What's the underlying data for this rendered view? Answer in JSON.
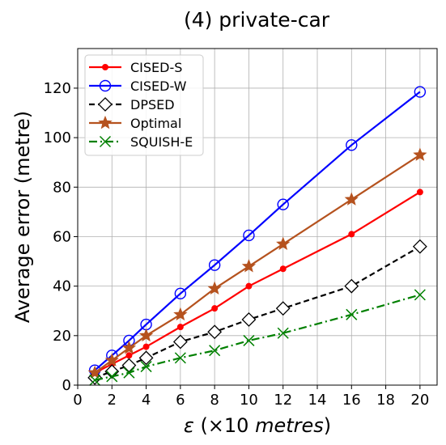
{
  "chart_data": {
    "type": "line",
    "title": "(4) private-car",
    "xlabel": {
      "symbol": "ε",
      "rest": " (×10 ",
      "unit": "metres",
      "close": ")"
    },
    "ylabel": "Average error (metre)",
    "xlim": [
      0,
      21
    ],
    "ylim": [
      0,
      136
    ],
    "xticks": [
      0,
      2,
      4,
      6,
      8,
      10,
      12,
      14,
      16,
      18,
      20
    ],
    "yticks": [
      0,
      20,
      40,
      60,
      80,
      100,
      120
    ],
    "grid": true,
    "legend_position": "top-left",
    "x": [
      1,
      2,
      3,
      4,
      6,
      8,
      10,
      12,
      16,
      20
    ],
    "series": [
      {
        "name": "CISED-S",
        "color": "#ff0000",
        "marker": "dot",
        "dash": "solid",
        "values": [
          5,
          8.5,
          12,
          15.5,
          23.5,
          31,
          40,
          47,
          61,
          78
        ]
      },
      {
        "name": "CISED-W",
        "color": "#0000ff",
        "marker": "circle",
        "dash": "solid",
        "values": [
          6,
          12,
          18,
          24.5,
          37,
          48.5,
          60.5,
          73,
          97,
          118.5
        ]
      },
      {
        "name": "DPSED",
        "color": "#000000",
        "marker": "diamond",
        "dash": "dashed",
        "values": [
          3,
          5.5,
          8,
          11,
          17.5,
          21.5,
          26.5,
          31,
          40,
          56
        ]
      },
      {
        "name": "Optimal",
        "color": "#b5521e",
        "marker": "star",
        "dash": "solid",
        "values": [
          5,
          10,
          15,
          20,
          28.5,
          39,
          48,
          57,
          75,
          93
        ]
      },
      {
        "name": "SQUISH-E",
        "color": "#008000",
        "marker": "x",
        "dash": "dashdot",
        "values": [
          2,
          3.5,
          5,
          7.5,
          11,
          14,
          18,
          21,
          28.5,
          36.5
        ]
      }
    ]
  }
}
